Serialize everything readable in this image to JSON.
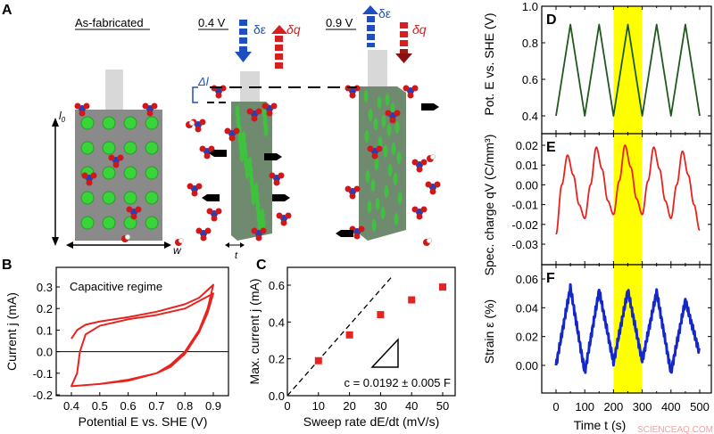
{
  "panel_a": {
    "label": "A",
    "states": [
      "As-fabricated",
      "0.4 V",
      "0.9 V"
    ],
    "delta_strain": "δε",
    "delta_charge": "δq",
    "delta_l": "Δl",
    "l0": "l",
    "l0_sub": "0",
    "w": "w",
    "t": "t",
    "colors": {
      "strain_arrow": "#1f4fbf",
      "charge_arrow": "#d42020",
      "pore": "#2fd12f",
      "solid": "#8a8a8a"
    }
  },
  "chart_data": [
    {
      "panel": "B",
      "type": "line",
      "annotation": "Capacitive regime",
      "xlabel": "Potential E vs. SHE (V)",
      "ylabel": "Current j (mA)",
      "xlim": [
        0.35,
        0.95
      ],
      "ylim": [
        -0.2,
        0.38
      ],
      "xticks": [
        "0.4",
        "0.5",
        "0.6",
        "0.7",
        "0.8",
        "0.9"
      ],
      "yticks": [
        "-0.2",
        "-0.1",
        "0.0",
        "0.1",
        "0.2",
        "0.3"
      ],
      "color": "#e8231f",
      "x": [
        0.4,
        0.42,
        0.45,
        0.5,
        0.6,
        0.7,
        0.8,
        0.85,
        0.9,
        0.88,
        0.85,
        0.8,
        0.75,
        0.7,
        0.6,
        0.5,
        0.4,
        0.42,
        0.43,
        0.45,
        0.5,
        0.6,
        0.7,
        0.8,
        0.9,
        0.88,
        0.85,
        0.8,
        0.75,
        0.7,
        0.6,
        0.5,
        0.4
      ],
      "y": [
        0.06,
        0.1,
        0.125,
        0.14,
        0.16,
        0.185,
        0.22,
        0.25,
        0.31,
        0.2,
        0.1,
        0.0,
        -0.06,
        -0.1,
        -0.13,
        -0.15,
        -0.16,
        -0.1,
        0.0,
        0.08,
        0.12,
        0.15,
        0.17,
        0.2,
        0.27,
        0.18,
        0.09,
        -0.01,
        -0.07,
        -0.1,
        -0.135,
        -0.15,
        -0.16
      ]
    },
    {
      "panel": "C",
      "type": "scatter",
      "xlabel": "Sweep rate dE/dt (mV/s)",
      "ylabel": "Max. current j (mA)",
      "xlim": [
        0,
        55
      ],
      "ylim": [
        0,
        0.7
      ],
      "xticks": [
        "0",
        "10",
        "20",
        "30",
        "40",
        "50"
      ],
      "yticks": [
        "0.0",
        "0.2",
        "0.4",
        "0.6"
      ],
      "x": [
        10,
        20,
        30,
        40,
        50
      ],
      "y": [
        0.19,
        0.33,
        0.44,
        0.52,
        0.59
      ],
      "fit_slope": 0.0192,
      "annotation": "c = 0.0192 ± 0.005 F",
      "color": "#e8231f"
    },
    {
      "panel": "D",
      "type": "line",
      "ylabel": "Pot. E vs. SHE (V)",
      "ylim": [
        0.3,
        1.0
      ],
      "yticks": [
        "0.4",
        "0.6",
        "0.8",
        "1.0"
      ],
      "x": [
        0,
        50,
        100,
        150,
        200,
        250,
        300,
        350,
        400,
        450,
        500
      ],
      "y": [
        0.4,
        0.9,
        0.4,
        0.9,
        0.4,
        0.9,
        0.4,
        0.9,
        0.4,
        0.9,
        0.4
      ],
      "color": "#1e5a1e"
    },
    {
      "panel": "E",
      "type": "line",
      "ylabel": "Spec. charge qV (C/mm³)",
      "ylim": [
        -0.04,
        0.025
      ],
      "yticks": [
        "-0.03",
        "-0.02",
        "-0.01",
        "0.00",
        "0.01",
        "0.02"
      ],
      "x": [
        0,
        20,
        40,
        60,
        80,
        100,
        120,
        140,
        160,
        180,
        200,
        220,
        240,
        260,
        280,
        300,
        320,
        340,
        360,
        380,
        400,
        420,
        440,
        460,
        480,
        500
      ],
      "y": [
        -0.025,
        0.0,
        0.015,
        0.005,
        -0.01,
        -0.017,
        0.0,
        0.019,
        0.008,
        -0.008,
        -0.015,
        0.002,
        0.02,
        0.009,
        -0.007,
        -0.015,
        0.002,
        0.019,
        0.008,
        -0.008,
        -0.017,
        0.0,
        0.017,
        0.005,
        -0.01,
        -0.023
      ],
      "color": "#e8231f"
    },
    {
      "panel": "F",
      "type": "line",
      "xlabel": "Time t (s)",
      "ylabel": "Strain ε (%)",
      "xlim": [
        -50,
        520
      ],
      "ylim": [
        -0.02,
        0.07
      ],
      "xticks": [
        "0",
        "100",
        "200",
        "300",
        "400",
        "500"
      ],
      "yticks": [
        "0.00",
        "0.02",
        "0.04",
        "0.06"
      ],
      "x": [
        0,
        50,
        100,
        150,
        200,
        250,
        300,
        350,
        400,
        450,
        500
      ],
      "y": [
        0.0,
        0.054,
        -0.005,
        0.052,
        0.002,
        0.052,
        0.003,
        0.051,
        -0.005,
        0.045,
        0.008
      ],
      "color": "#1428c8"
    }
  ],
  "time_axis": {
    "highlight": [
      200,
      300
    ],
    "highlight_color": "#ffff00"
  },
  "watermark": "SCIENCEAQ.COM"
}
